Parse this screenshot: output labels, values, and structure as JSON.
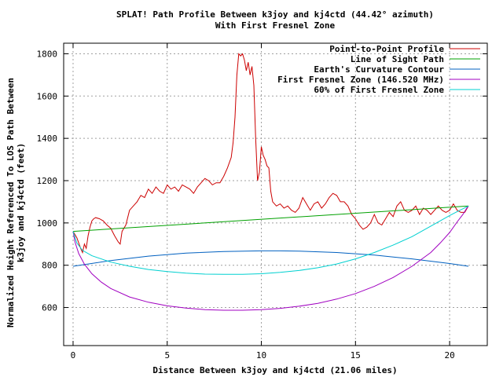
{
  "chart_data": {
    "type": "line",
    "title": "SPLAT! Path Profile Between k3joy and kj4ctd (44.42° azimuth)",
    "subtitle": "With First Fresnel Zone",
    "xlabel": "Distance Between k3joy and kj4ctd (21.06 miles)",
    "ylabel_line1": "Normalized Height Referenced To LOS Path Between",
    "ylabel_line2": "k3joy and kj4ctd (feet)",
    "xlim": [
      -0.5,
      22.0
    ],
    "ylim": [
      420,
      1850
    ],
    "xticks": [
      0,
      5,
      10,
      15,
      20
    ],
    "yticks": [
      600,
      800,
      1000,
      1200,
      1400,
      1600,
      1800
    ],
    "grid": true,
    "legend_position": "top-right",
    "series": [
      {
        "name": "Point-to-Point Profile",
        "color": "#cc0000",
        "x": [
          0,
          0.2,
          0.4,
          0.5,
          0.6,
          0.7,
          0.8,
          0.9,
          1.0,
          1.1,
          1.2,
          1.4,
          1.6,
          1.8,
          2.0,
          2.2,
          2.4,
          2.5,
          2.6,
          2.8,
          3.0,
          3.2,
          3.4,
          3.6,
          3.8,
          4.0,
          4.2,
          4.4,
          4.6,
          4.8,
          5.0,
          5.2,
          5.4,
          5.6,
          5.8,
          6.0,
          6.2,
          6.4,
          6.6,
          6.8,
          7.0,
          7.2,
          7.4,
          7.6,
          7.8,
          8.0,
          8.2,
          8.4,
          8.5,
          8.6,
          8.7,
          8.8,
          8.9,
          9.0,
          9.1,
          9.2,
          9.3,
          9.4,
          9.5,
          9.6,
          9.7,
          9.8,
          9.9,
          10.0,
          10.1,
          10.2,
          10.3,
          10.4,
          10.5,
          10.6,
          10.8,
          11.0,
          11.2,
          11.4,
          11.6,
          11.8,
          12.0,
          12.2,
          12.4,
          12.6,
          12.8,
          13.0,
          13.2,
          13.4,
          13.6,
          13.8,
          14.0,
          14.2,
          14.4,
          14.6,
          14.8,
          15.0,
          15.2,
          15.4,
          15.6,
          15.8,
          16.0,
          16.2,
          16.4,
          16.6,
          16.8,
          17.0,
          17.2,
          17.4,
          17.6,
          17.8,
          18.0,
          18.2,
          18.4,
          18.6,
          18.8,
          19.0,
          19.2,
          19.4,
          19.6,
          19.8,
          20.0,
          20.2,
          20.4,
          20.6,
          20.8,
          21.0
        ],
        "y": [
          960,
          930,
          880,
          860,
          900,
          880,
          940,
          980,
          1010,
          1020,
          1025,
          1020,
          1010,
          990,
          975,
          940,
          910,
          900,
          960,
          990,
          1060,
          1080,
          1100,
          1130,
          1120,
          1160,
          1140,
          1170,
          1150,
          1140,
          1180,
          1160,
          1170,
          1150,
          1180,
          1170,
          1160,
          1140,
          1170,
          1190,
          1210,
          1200,
          1180,
          1190,
          1190,
          1220,
          1260,
          1310,
          1380,
          1500,
          1700,
          1800,
          1790,
          1800,
          1770,
          1720,
          1760,
          1700,
          1740,
          1650,
          1400,
          1200,
          1240,
          1360,
          1320,
          1300,
          1270,
          1260,
          1150,
          1100,
          1080,
          1090,
          1070,
          1080,
          1060,
          1050,
          1070,
          1120,
          1090,
          1060,
          1090,
          1100,
          1070,
          1090,
          1120,
          1140,
          1130,
          1100,
          1100,
          1080,
          1040,
          1020,
          990,
          970,
          980,
          1000,
          1040,
          1000,
          990,
          1020,
          1050,
          1030,
          1080,
          1100,
          1060,
          1050,
          1060,
          1080,
          1040,
          1070,
          1060,
          1040,
          1060,
          1080,
          1060,
          1050,
          1060,
          1090,
          1060,
          1050,
          1050,
          1080
        ]
      },
      {
        "name": "Line of Sight Path",
        "color": "#00a000",
        "x": [
          0,
          21.0
        ],
        "y": [
          960,
          1080
        ]
      },
      {
        "name": "Earth's Curvature Contour",
        "color": "#0060c0",
        "x": [
          0,
          2,
          4,
          6,
          8,
          10,
          11,
          12,
          14,
          16,
          18,
          20,
          21.0
        ],
        "y": [
          795,
          822,
          843,
          857,
          865,
          868,
          868,
          867,
          860,
          848,
          830,
          808,
          795
        ]
      },
      {
        "name": "First Fresnel Zone (146.520 MHz)",
        "color": "#a000c0",
        "x": [
          0,
          0.1,
          0.3,
          0.6,
          1,
          1.5,
          2,
          3,
          4,
          5,
          6,
          7,
          8,
          9,
          10,
          11,
          12,
          13,
          14,
          15,
          16,
          17,
          18,
          19,
          19.5,
          20,
          20.4,
          20.7,
          20.9,
          21.0
        ],
        "y": [
          960,
          910,
          855,
          805,
          760,
          720,
          690,
          650,
          625,
          608,
          597,
          590,
          587,
          587,
          590,
          596,
          606,
          620,
          640,
          666,
          700,
          742,
          795,
          860,
          905,
          955,
          1005,
          1040,
          1068,
          1080
        ]
      },
      {
        "name": "60% of First Fresnel Zone",
        "color": "#00d0d0",
        "x": [
          0,
          0.2,
          0.5,
          1,
          2,
          3,
          4,
          5,
          6,
          7,
          8,
          9,
          10,
          11,
          12,
          13,
          14,
          15,
          16,
          17,
          18,
          19,
          19.5,
          20,
          20.5,
          20.8,
          21.0
        ],
        "y": [
          960,
          905,
          870,
          845,
          815,
          795,
          780,
          770,
          763,
          758,
          757,
          757,
          760,
          766,
          775,
          788,
          806,
          830,
          860,
          895,
          935,
          985,
          1010,
          1035,
          1058,
          1071,
          1080
        ]
      }
    ]
  }
}
